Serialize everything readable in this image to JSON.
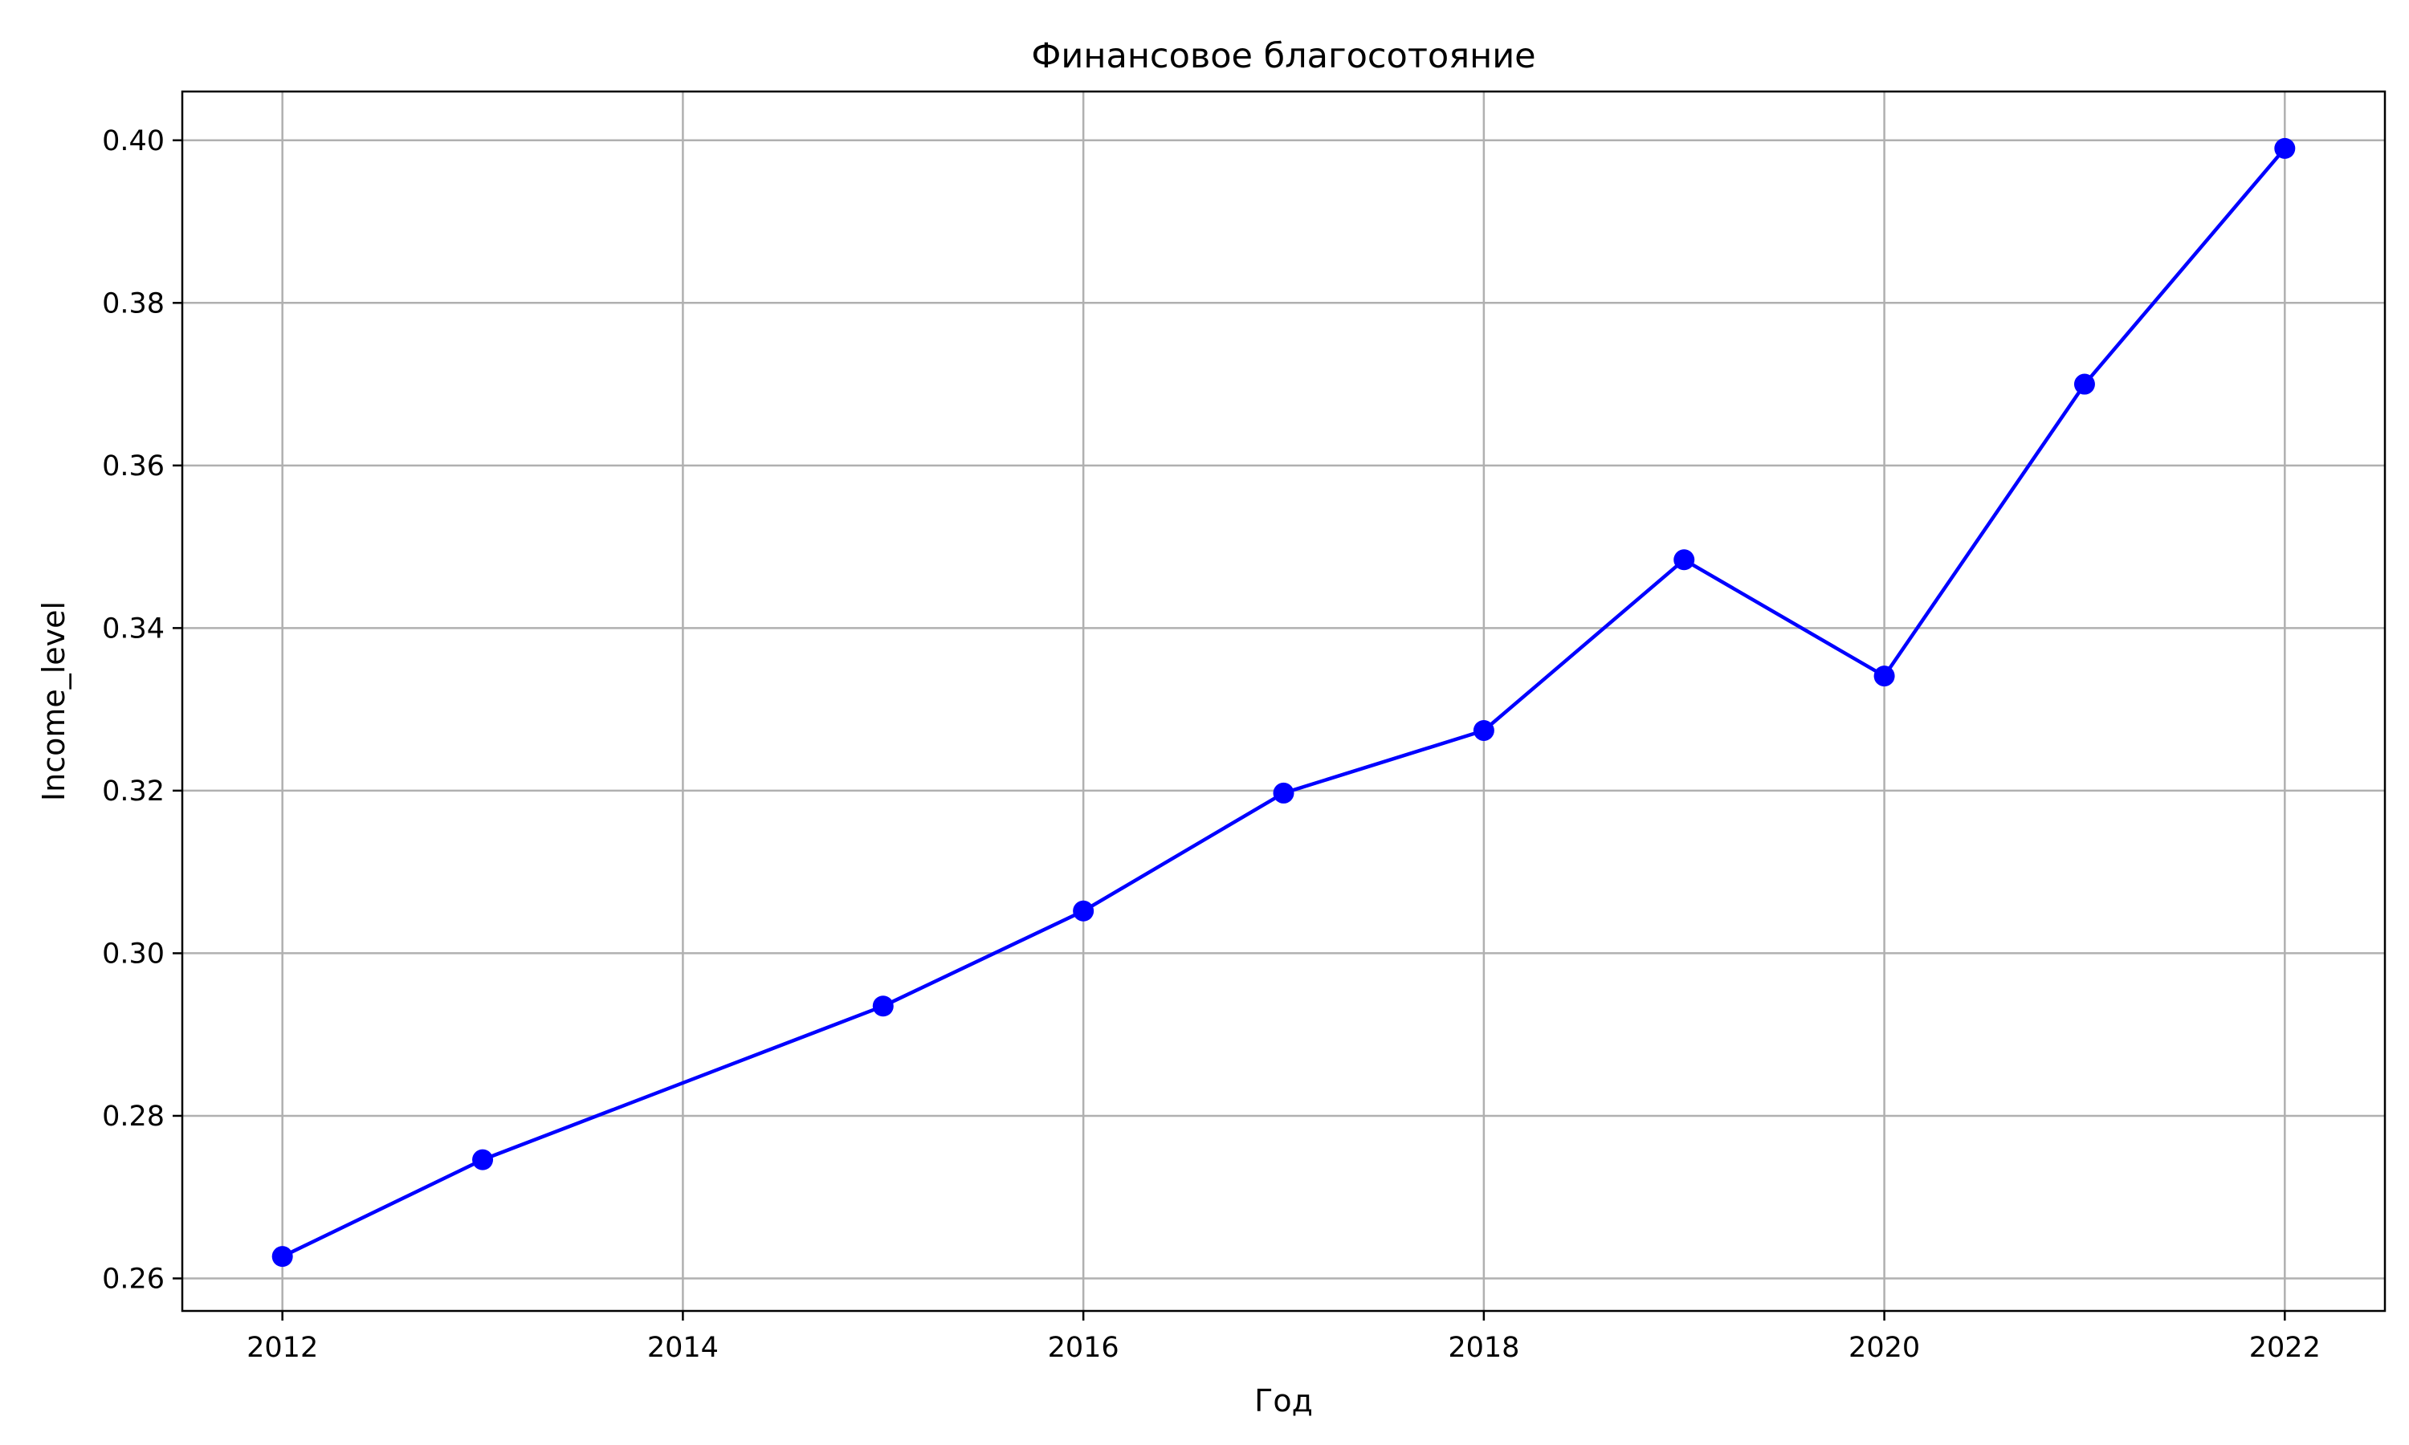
{
  "chart_data": {
    "type": "line",
    "title": "Финансовое благосотояние",
    "xlabel": "Год",
    "ylabel": "Income_level",
    "x": [
      2012,
      2013,
      2015,
      2016,
      2017,
      2018,
      2019,
      2020,
      2021,
      2022
    ],
    "series": [
      {
        "values": [
          0.2627,
          0.2746,
          0.2935,
          0.3052,
          0.3197,
          0.3274,
          0.3484,
          0.3341,
          0.37,
          0.399
        ]
      }
    ],
    "xlim": [
      2011.5,
      2022.5
    ],
    "ylim": [
      0.256,
      0.406
    ],
    "x_ticks": [
      2012,
      2014,
      2016,
      2018,
      2020,
      2022
    ],
    "y_ticks": [
      0.26,
      0.28,
      0.3,
      0.32,
      0.34,
      0.36,
      0.38,
      0.4
    ],
    "y_tick_labels": [
      "0.26",
      "0.28",
      "0.30",
      "0.32",
      "0.34",
      "0.36",
      "0.38",
      "0.40"
    ],
    "grid": true,
    "line_color": "#0000ff",
    "marker": "circle"
  }
}
